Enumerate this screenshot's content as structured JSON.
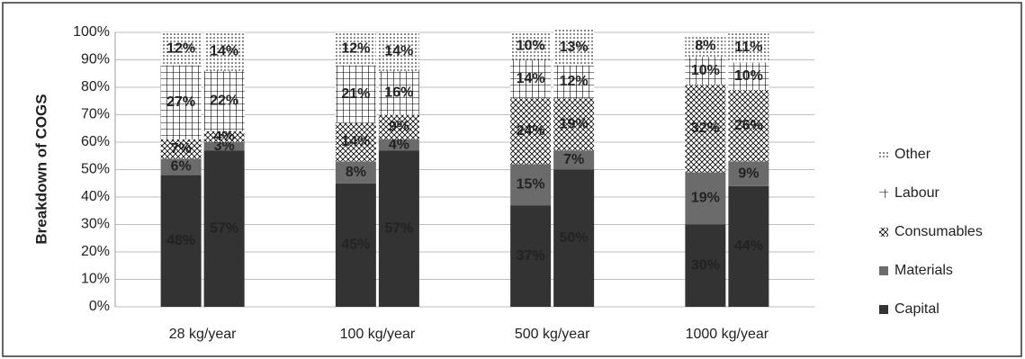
{
  "chart_data": {
    "type": "stacked_bar",
    "y_label": "Breakdown of COGS",
    "categories": [
      "28 kg/year",
      null,
      "100 kg/year",
      null,
      "500 kg/year",
      null,
      "1000 kg/year",
      null
    ],
    "ylim": [
      0,
      100
    ],
    "yticks": [
      {
        "value": 0,
        "label": "0%"
      },
      {
        "value": 10,
        "label": "10%"
      },
      {
        "value": 20,
        "label": "20%"
      },
      {
        "value": 30,
        "label": "30%"
      },
      {
        "value": 40,
        "label": "40%"
      },
      {
        "value": 50,
        "label": "50%"
      },
      {
        "value": 60,
        "label": "60%"
      },
      {
        "value": 70,
        "label": "70%"
      },
      {
        "value": 80,
        "label": "80%"
      },
      {
        "value": 90,
        "label": "90%"
      },
      {
        "value": 100,
        "label": "100%"
      }
    ],
    "grid": true,
    "legend": "right",
    "series": [
      {
        "name": "Capital",
        "color": "#333333",
        "pattern": "solid",
        "values": [
          48,
          57,
          45,
          57,
          37,
          50,
          30,
          44
        ],
        "value_labels": [
          "48%",
          "57%",
          "45%",
          "57%",
          "37%",
          "50%",
          "30%",
          "44%"
        ]
      },
      {
        "name": "Materials",
        "color": "#6b6b6b",
        "pattern": "solid",
        "values": [
          6,
          3,
          8,
          4,
          15,
          7,
          19,
          9
        ],
        "value_labels": [
          "6%",
          "3%",
          "8%",
          "4%",
          "15%",
          "7%",
          "19%",
          "9%"
        ]
      },
      {
        "name": "Consumables",
        "color": "#9a9a9a",
        "pattern": "crosshatch",
        "values": [
          7,
          4,
          14,
          9,
          24,
          19,
          32,
          26
        ],
        "value_labels": [
          "7%",
          "4%",
          "14%",
          "9%",
          "24%",
          "19%",
          "32%",
          "26%"
        ]
      },
      {
        "name": "Labour",
        "color": "#b0b0b0",
        "pattern": "grid",
        "values": [
          27,
          22,
          21,
          16,
          14,
          12,
          10,
          10
        ],
        "value_labels": [
          "27%",
          "22%",
          "21%",
          "16%",
          "14%",
          "12%",
          "10%",
          "10%"
        ]
      },
      {
        "name": "Other",
        "color": "#a8a8a8",
        "pattern": "dots",
        "values": [
          12,
          14,
          12,
          14,
          10,
          13,
          8,
          11
        ],
        "value_labels": [
          "12%",
          "14%",
          "12%",
          "14%",
          "10%",
          "13%",
          "8%",
          "11%"
        ]
      }
    ]
  }
}
